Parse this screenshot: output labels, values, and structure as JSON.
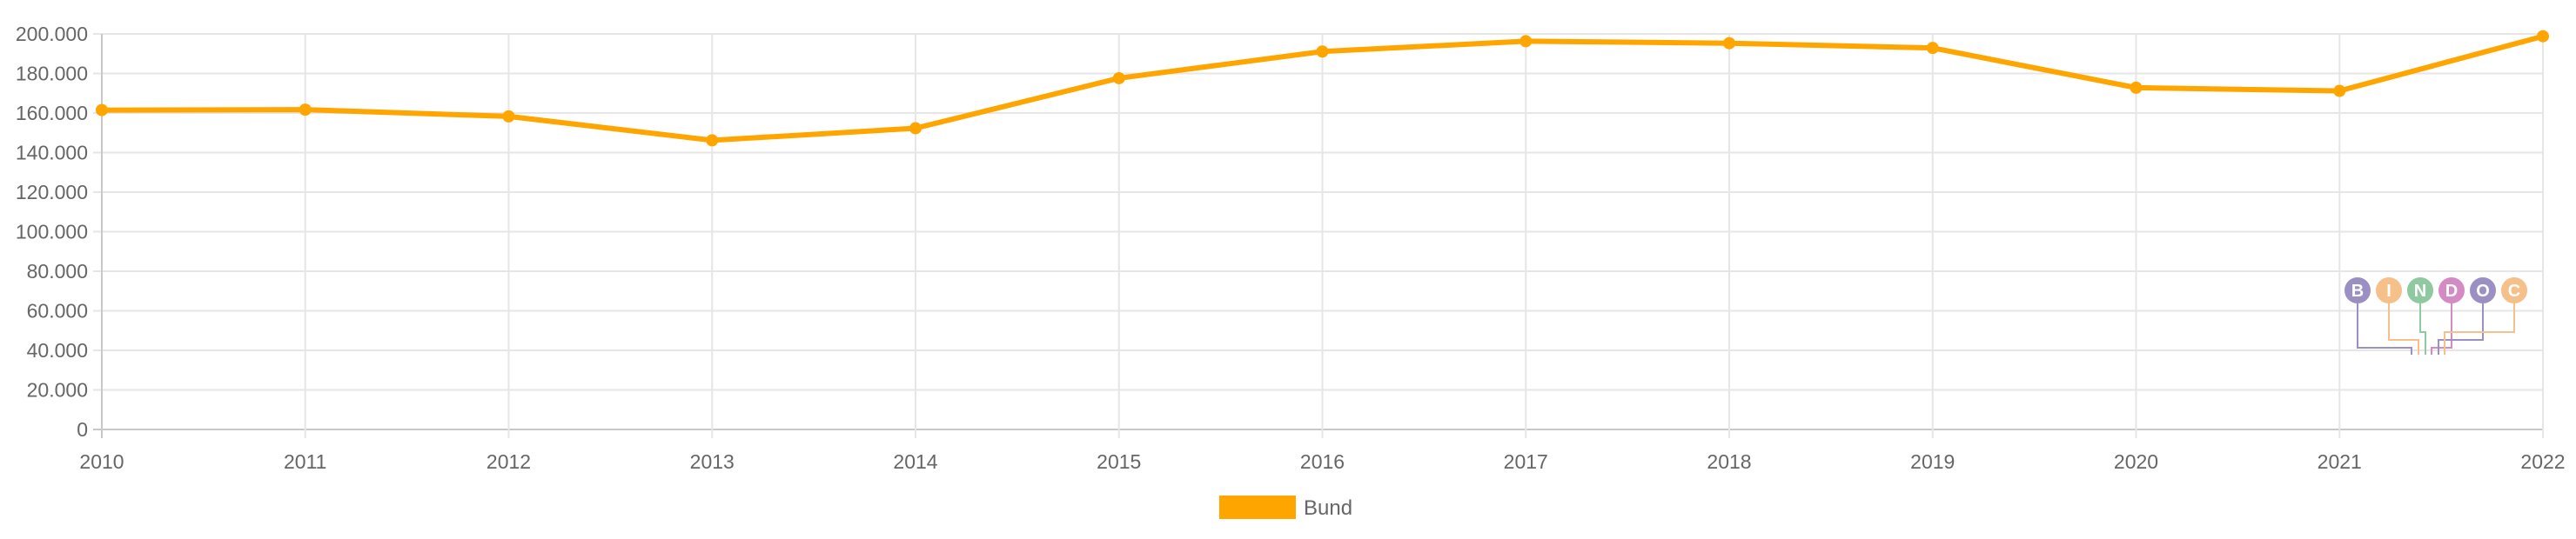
{
  "chart_data": {
    "type": "line",
    "categories": [
      "2010",
      "2011",
      "2012",
      "2013",
      "2014",
      "2015",
      "2016",
      "2017",
      "2018",
      "2019",
      "2020",
      "2021",
      "2022"
    ],
    "series": [
      {
        "name": "Bund",
        "color": "#FFA500",
        "values": [
          161500,
          161700,
          158300,
          146200,
          152300,
          177600,
          191100,
          196300,
          195300,
          192900,
          172800,
          171200,
          198800
        ]
      }
    ],
    "ylim": [
      0,
      200000
    ],
    "yticks": [
      0,
      20000,
      40000,
      60000,
      80000,
      100000,
      120000,
      140000,
      160000,
      180000,
      200000
    ],
    "ytick_labels": [
      "0",
      "20.000",
      "40.000",
      "60.000",
      "80.000",
      "100.000",
      "120.000",
      "140.000",
      "160.000",
      "180.000",
      "200.000"
    ],
    "grid": true,
    "legend_position": "bottom"
  },
  "watermark": {
    "letters": [
      "B",
      "I",
      "N",
      "D",
      "O",
      "C"
    ],
    "colors": [
      "#9B8FC4",
      "#F5C089",
      "#8FC9A0",
      "#D48BC4",
      "#9B8FC4",
      "#F5C089"
    ]
  }
}
